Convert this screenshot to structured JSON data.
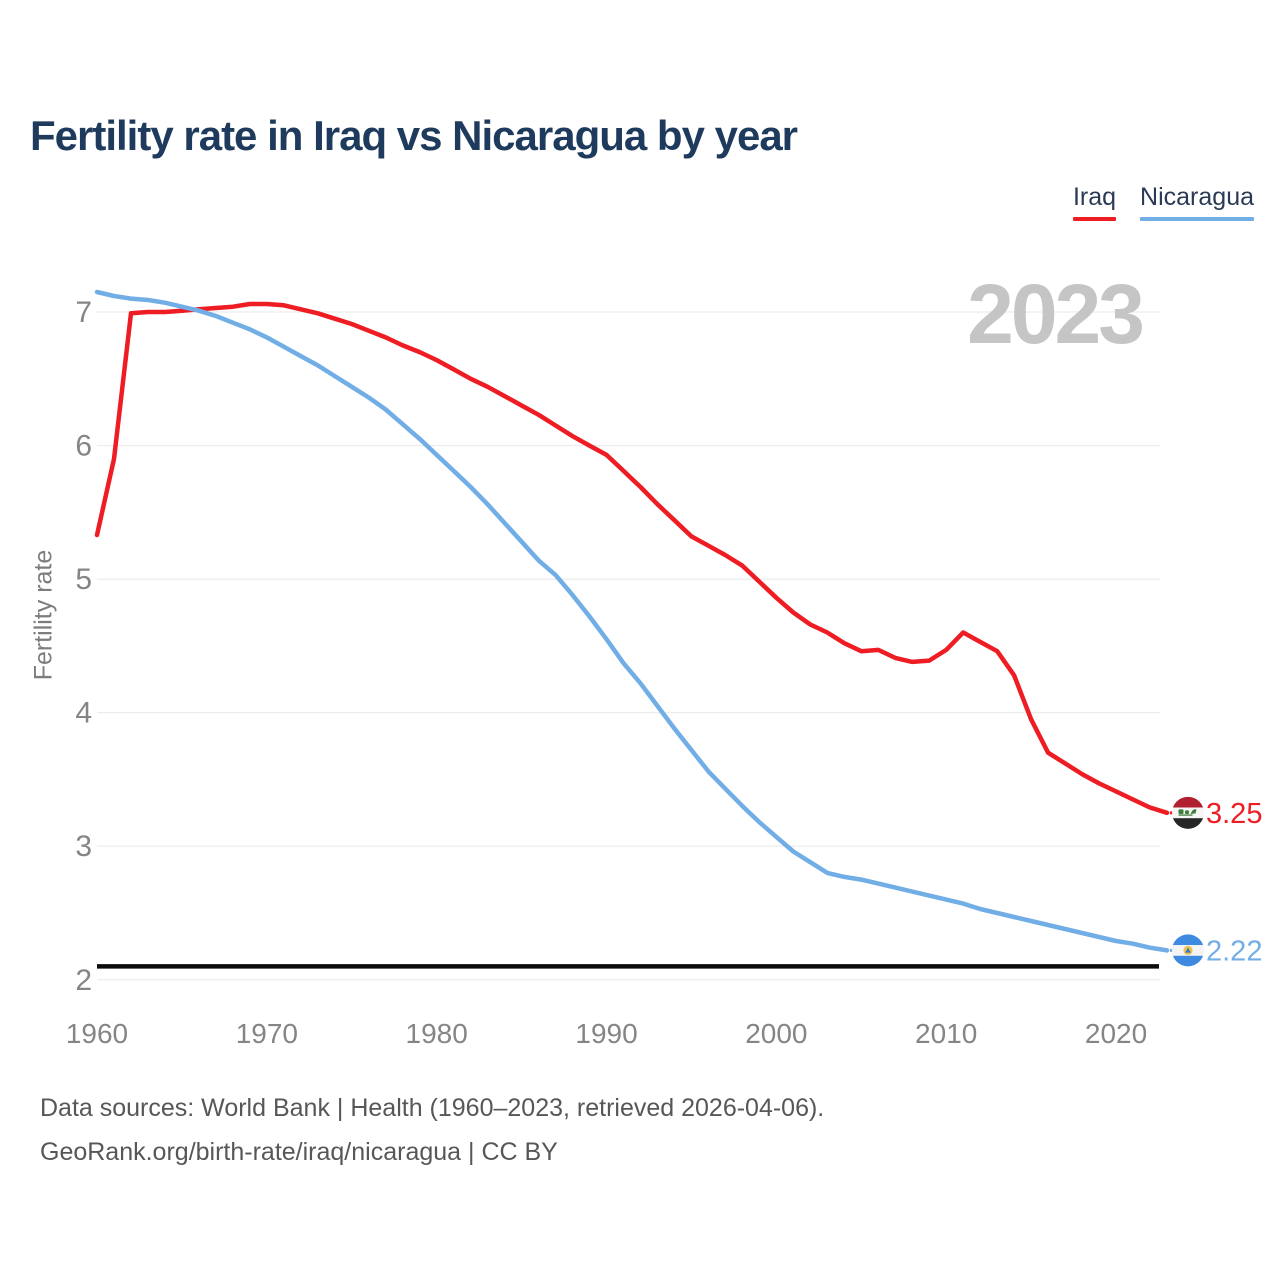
{
  "title": "Fertility rate in Iraq vs Nicaragua by year",
  "watermark": "2023",
  "legend": {
    "items": [
      {
        "label": "Iraq",
        "color": "#ee1c23"
      },
      {
        "label": "Nicaragua",
        "color": "#72aee6"
      }
    ]
  },
  "footer": {
    "line1": "Data sources: World Bank | Health (1960–2023, retrieved 2026-04-06).",
    "line2": "GeoRank.org/birth-rate/iraq/nicaragua | CC BY"
  },
  "icon_colors": {
    "iraq_flag": {
      "top": "#b02031",
      "middle": "#f6f6f6",
      "bottom": "#262626",
      "script": "#3f7d3c"
    },
    "nicaragua_flag": {
      "band": "#3d8ae0",
      "middle": "#f4f4f4",
      "emblem_gold": "#e9c44d",
      "emblem_blue": "#4076c9"
    }
  },
  "chart_data": {
    "type": "line",
    "title": "Fertility rate in Iraq vs Nicaragua by year",
    "xlabel": "",
    "ylabel": "Fertility rate",
    "grid": true,
    "legend_position": "top-right",
    "ylim": [
      1.95,
      7.25
    ],
    "yticks": [
      2,
      3,
      4,
      5,
      6,
      7
    ],
    "xticks": [
      1960,
      1970,
      1980,
      1990,
      2000,
      2010,
      2020
    ],
    "reference_line": {
      "value": 2.1,
      "color": "#0c0c0c"
    },
    "axis_tick_color": "#858585",
    "gridline_color": "#ececec",
    "x": [
      1960,
      1961,
      1962,
      1963,
      1964,
      1965,
      1966,
      1967,
      1968,
      1969,
      1970,
      1971,
      1972,
      1973,
      1974,
      1975,
      1976,
      1977,
      1978,
      1979,
      1980,
      1981,
      1982,
      1983,
      1984,
      1985,
      1986,
      1987,
      1988,
      1989,
      1990,
      1991,
      1992,
      1993,
      1994,
      1995,
      1996,
      1997,
      1998,
      1999,
      2000,
      2001,
      2002,
      2003,
      2004,
      2005,
      2006,
      2007,
      2008,
      2009,
      2010,
      2011,
      2012,
      2013,
      2014,
      2015,
      2016,
      2017,
      2018,
      2019,
      2020,
      2021,
      2022,
      2023
    ],
    "series": [
      {
        "name": "Iraq",
        "color": "#ee1c23",
        "flag": "iraq_flag",
        "end_label": "3.25",
        "values": [
          5.33,
          5.9,
          6.99,
          7.0,
          7.0,
          7.01,
          7.02,
          7.03,
          7.04,
          7.06,
          7.06,
          7.05,
          7.02,
          6.99,
          6.95,
          6.91,
          6.86,
          6.81,
          6.75,
          6.7,
          6.64,
          6.57,
          6.5,
          6.44,
          6.37,
          6.3,
          6.23,
          6.15,
          6.07,
          6.0,
          5.93,
          5.81,
          5.69,
          5.56,
          5.44,
          5.32,
          5.25,
          5.18,
          5.1,
          4.98,
          4.86,
          4.75,
          4.66,
          4.6,
          4.52,
          4.46,
          4.47,
          4.41,
          4.38,
          4.39,
          4.47,
          4.6,
          4.53,
          4.46,
          4.28,
          3.95,
          3.7,
          3.62,
          3.54,
          3.47,
          3.41,
          3.35,
          3.29,
          3.25
        ]
      },
      {
        "name": "Nicaragua",
        "color": "#72aee6",
        "flag": "nicaragua_flag",
        "end_label": "2.22",
        "values": [
          7.15,
          7.12,
          7.1,
          7.09,
          7.07,
          7.04,
          7.01,
          6.97,
          6.92,
          6.87,
          6.81,
          6.74,
          6.67,
          6.6,
          6.52,
          6.44,
          6.36,
          6.27,
          6.16,
          6.05,
          5.93,
          5.81,
          5.69,
          5.56,
          5.42,
          5.28,
          5.14,
          5.03,
          4.88,
          4.72,
          4.55,
          4.37,
          4.22,
          4.05,
          3.88,
          3.72,
          3.56,
          3.43,
          3.3,
          3.18,
          3.07,
          2.96,
          2.88,
          2.8,
          2.77,
          2.75,
          2.72,
          2.69,
          2.66,
          2.63,
          2.6,
          2.57,
          2.53,
          2.5,
          2.47,
          2.44,
          2.41,
          2.38,
          2.35,
          2.32,
          2.29,
          2.27,
          2.24,
          2.22
        ]
      }
    ]
  }
}
